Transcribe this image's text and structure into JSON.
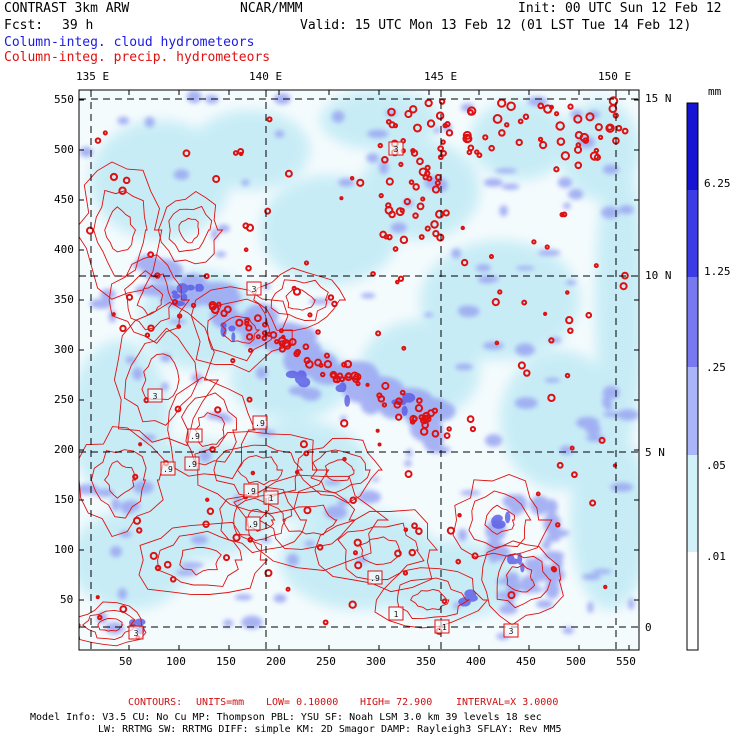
{
  "header": {
    "model": "CONTRAST  3km ARW",
    "center": "NCAR/MMM",
    "init": "Init: 00 UTC Sun 12 Feb 12",
    "fcst_label": "Fcst:",
    "fcst_value": "39 h",
    "valid": "Valid: 15 UTC Mon 13 Feb 12 (01 LST Tue 14 Feb 12)",
    "field1": "Column-integ. cloud hydrometeors",
    "field2": "Column-integ. precip. hydrometeors"
  },
  "axes": {
    "lon_labels": [
      "135 E",
      "140 E",
      "145 E",
      "150 E"
    ],
    "lat_labels": [
      "15 N",
      "10 N",
      "5 N",
      "0"
    ],
    "x_ticks": [
      "50",
      "100",
      "150",
      "200",
      "250",
      "300",
      "350",
      "400",
      "450",
      "500",
      "550"
    ],
    "y_ticks": [
      "550",
      "500",
      "450",
      "400",
      "350",
      "300",
      "250",
      "200",
      "150",
      "100",
      "50"
    ]
  },
  "colorbar": {
    "unit": "mm",
    "labels": [
      "6.25",
      "1.25",
      ".25",
      ".05",
      ".01"
    ],
    "colors": [
      "#1414d2",
      "#3c3ce6",
      "#7878f0",
      "#aab4f8",
      "#d2f0f8",
      "#ffffff"
    ]
  },
  "contour_info": {
    "label": "CONTOURS:",
    "units": "UNITS=mm",
    "low": "LOW= 0.10000",
    "high": "HIGH=  72.900",
    "interval": "INTERVAL=X  3.0000"
  },
  "footer": {
    "line1": "Model Info: V3.5      CU: No Cu     MP: Thompson     PBL: YSU        SF: Noah LSM     3.0 km   39 levels   18 sec",
    "line2": "LW: RRTMG    SW: RRTMG   DIFF: simple KM: 2D Smagor DAMP: Rayleigh3  SFLAY: Rev MM5"
  },
  "contour_box_labels": [
    "3",
    "3",
    "3",
    ".9",
    ".9",
    ".9",
    ".9",
    ".9",
    "1",
    ".9",
    ".9",
    "1",
    ".1",
    "3",
    "3"
  ],
  "colors": {
    "contour": "#dd1111",
    "cloud_light": "#c6ecf6",
    "cloud_mid": "#9aa6f2",
    "cloud_dark": "#5a5ae6"
  }
}
